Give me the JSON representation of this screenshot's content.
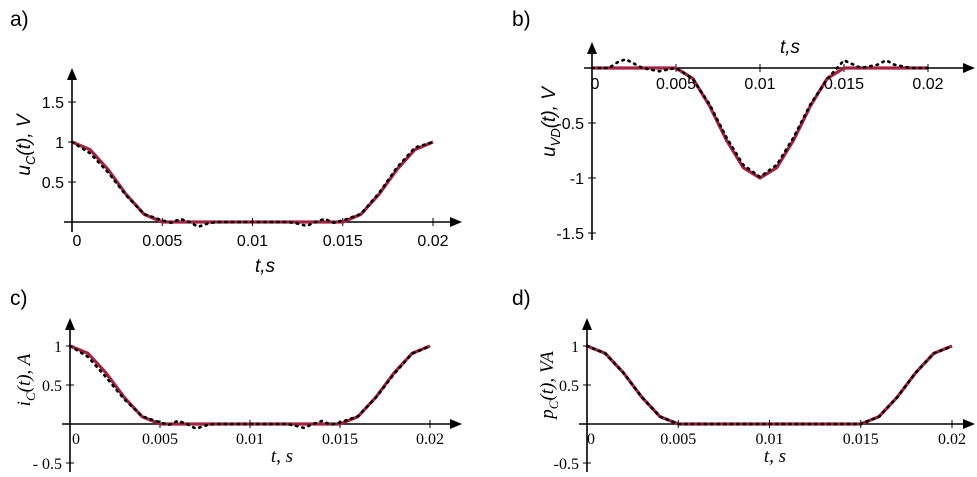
{
  "chart_data": [
    {
      "type": "line",
      "panel_label": "a)",
      "xlabel": "t,s",
      "ylabel": "u_C(t), V",
      "ylabel_parts": {
        "sym": "u",
        "sub": "C",
        "rest": "(t),  V"
      },
      "xlim": [
        0,
        0.02
      ],
      "ylim": [
        0,
        1.9
      ],
      "xticks": [
        0,
        0.005,
        0.01,
        0.015,
        0.02
      ],
      "xtick_labels": [
        "0",
        "0.005",
        "0.01",
        "0.015",
        "0.02"
      ],
      "yticks": [
        0.5,
        1,
        1.5
      ],
      "ytick_labels": [
        "0.5",
        "1",
        "1.5"
      ],
      "series": [
        {
          "style": "solid",
          "color": "#a3233f",
          "x": [
            0,
            0.001,
            0.002,
            0.003,
            0.004,
            0.005,
            0.015,
            0.016,
            0.017,
            0.018,
            0.019,
            0.02
          ],
          "y": [
            1,
            0.905,
            0.655,
            0.345,
            0.095,
            0,
            0,
            0.095,
            0.345,
            0.655,
            0.905,
            1
          ]
        },
        {
          "style": "dotted",
          "color": "#000000",
          "x": [
            0,
            0.001,
            0.002,
            0.003,
            0.004,
            0.005,
            0.0055,
            0.006,
            0.0065,
            0.007,
            0.0075,
            0.008,
            0.012,
            0.0125,
            0.013,
            0.0135,
            0.014,
            0.0145,
            0.015,
            0.016,
            0.017,
            0.018,
            0.019,
            0.02
          ],
          "y": [
            1,
            0.86,
            0.62,
            0.33,
            0.1,
            0.02,
            -0.01,
            0.04,
            0.0,
            -0.06,
            -0.02,
            0.0,
            0.0,
            -0.02,
            -0.05,
            0.0,
            0.04,
            -0.01,
            0.02,
            0.1,
            0.36,
            0.68,
            0.93,
            1
          ]
        }
      ]
    },
    {
      "type": "line",
      "panel_label": "b)",
      "xlabel": "t,s",
      "ylabel": "u_VD(t), V",
      "ylabel_parts": {
        "sym": "u",
        "sub": "VD",
        "rest": "(t),  V"
      },
      "xlim": [
        0,
        0.02
      ],
      "ylim": [
        -1.5,
        0.1
      ],
      "xticks": [
        0,
        0.005,
        0.01,
        0.015,
        0.02
      ],
      "xtick_labels": [
        "0",
        "0.005",
        "0.01",
        "0.015",
        "0.02"
      ],
      "yticks": [
        -0.5,
        -1,
        -1.5
      ],
      "ytick_labels": [
        "-0.5",
        "-1",
        "-1.5"
      ],
      "series": [
        {
          "style": "solid",
          "color": "#a3233f",
          "x": [
            0,
            0.005,
            0.006,
            0.007,
            0.008,
            0.009,
            0.01,
            0.011,
            0.012,
            0.013,
            0.014,
            0.015,
            0.02
          ],
          "y": [
            0,
            0,
            -0.095,
            -0.345,
            -0.655,
            -0.905,
            -1,
            -0.905,
            -0.655,
            -0.345,
            -0.095,
            0,
            0
          ]
        },
        {
          "style": "dotted",
          "color": "#000000",
          "x": [
            0,
            0.001,
            0.0015,
            0.002,
            0.003,
            0.004,
            0.005,
            0.006,
            0.007,
            0.008,
            0.009,
            0.01,
            0.011,
            0.012,
            0.013,
            0.014,
            0.015,
            0.016,
            0.017,
            0.0175,
            0.018,
            0.019,
            0.02
          ],
          "y": [
            0,
            0.0,
            0.05,
            0.08,
            0.0,
            -0.03,
            0.0,
            -0.1,
            -0.33,
            -0.63,
            -0.88,
            -0.99,
            -0.88,
            -0.63,
            -0.33,
            -0.1,
            0.07,
            0.0,
            0.03,
            0.07,
            0.03,
            0.0,
            0
          ]
        }
      ]
    },
    {
      "type": "line",
      "panel_label": "c)",
      "xlabel": "t, s",
      "ylabel": "i_C(t), A",
      "ylabel_parts": {
        "sym": "i",
        "sub": "C",
        "rest": "(t),  A"
      },
      "xlim": [
        0,
        0.02
      ],
      "ylim": [
        -0.5,
        1.3
      ],
      "xticks": [
        0,
        0.005,
        0.01,
        0.015,
        0.02
      ],
      "xtick_labels": [
        "0",
        "0.005",
        "0.01",
        "0.015",
        "0.02"
      ],
      "yticks": [
        1,
        0.5,
        -0.5
      ],
      "ytick_labels": [
        "1",
        "0.5",
        "- 0.5"
      ],
      "series": [
        {
          "style": "solid",
          "color": "#a3233f",
          "x": [
            0,
            0.001,
            0.002,
            0.003,
            0.004,
            0.005,
            0.015,
            0.016,
            0.017,
            0.018,
            0.019,
            0.02
          ],
          "y": [
            1,
            0.905,
            0.655,
            0.345,
            0.095,
            0,
            0,
            0.095,
            0.345,
            0.655,
            0.905,
            1
          ]
        },
        {
          "style": "dotted",
          "color": "#000000",
          "x": [
            0,
            0.001,
            0.002,
            0.003,
            0.004,
            0.005,
            0.0055,
            0.006,
            0.0065,
            0.007,
            0.0075,
            0.008,
            0.012,
            0.0125,
            0.013,
            0.0135,
            0.014,
            0.0145,
            0.015,
            0.016,
            0.017,
            0.018,
            0.019,
            0.02
          ],
          "y": [
            1,
            0.86,
            0.6,
            0.32,
            0.1,
            0.02,
            -0.01,
            0.04,
            0.0,
            -0.06,
            -0.02,
            0.0,
            0.0,
            -0.02,
            -0.05,
            0.0,
            0.04,
            -0.01,
            0.02,
            0.1,
            0.34,
            0.64,
            0.9,
            1
          ]
        }
      ]
    },
    {
      "type": "line",
      "panel_label": "d)",
      "xlabel": "t, s",
      "ylabel": "p_C(t), VA",
      "ylabel_parts": {
        "sym": "p",
        "sub": "C",
        "rest": "(t),  VA"
      },
      "xlim": [
        0,
        0.02
      ],
      "ylim": [
        -0.5,
        1.3
      ],
      "xticks": [
        0,
        0.005,
        0.01,
        0.015,
        0.02
      ],
      "xtick_labels": [
        "0",
        "0.005",
        "0.01",
        "0.015",
        "0.02"
      ],
      "yticks": [
        1,
        0.5,
        -0.5
      ],
      "ytick_labels": [
        "1",
        "0.5",
        "-0.5"
      ],
      "series": [
        {
          "style": "solid",
          "color": "#a3233f",
          "x": [
            0,
            0.001,
            0.002,
            0.003,
            0.004,
            0.005,
            0.015,
            0.016,
            0.017,
            0.018,
            0.019,
            0.02
          ],
          "y": [
            1,
            0.905,
            0.655,
            0.345,
            0.095,
            0,
            0,
            0.095,
            0.345,
            0.655,
            0.905,
            1
          ]
        },
        {
          "style": "dotted",
          "color": "#000000",
          "x": [
            0,
            0.001,
            0.002,
            0.003,
            0.004,
            0.005,
            0.015,
            0.016,
            0.017,
            0.018,
            0.019,
            0.02
          ],
          "y": [
            1,
            0.905,
            0.655,
            0.345,
            0.095,
            0,
            0,
            0.095,
            0.345,
            0.655,
            0.905,
            1
          ]
        }
      ]
    }
  ]
}
